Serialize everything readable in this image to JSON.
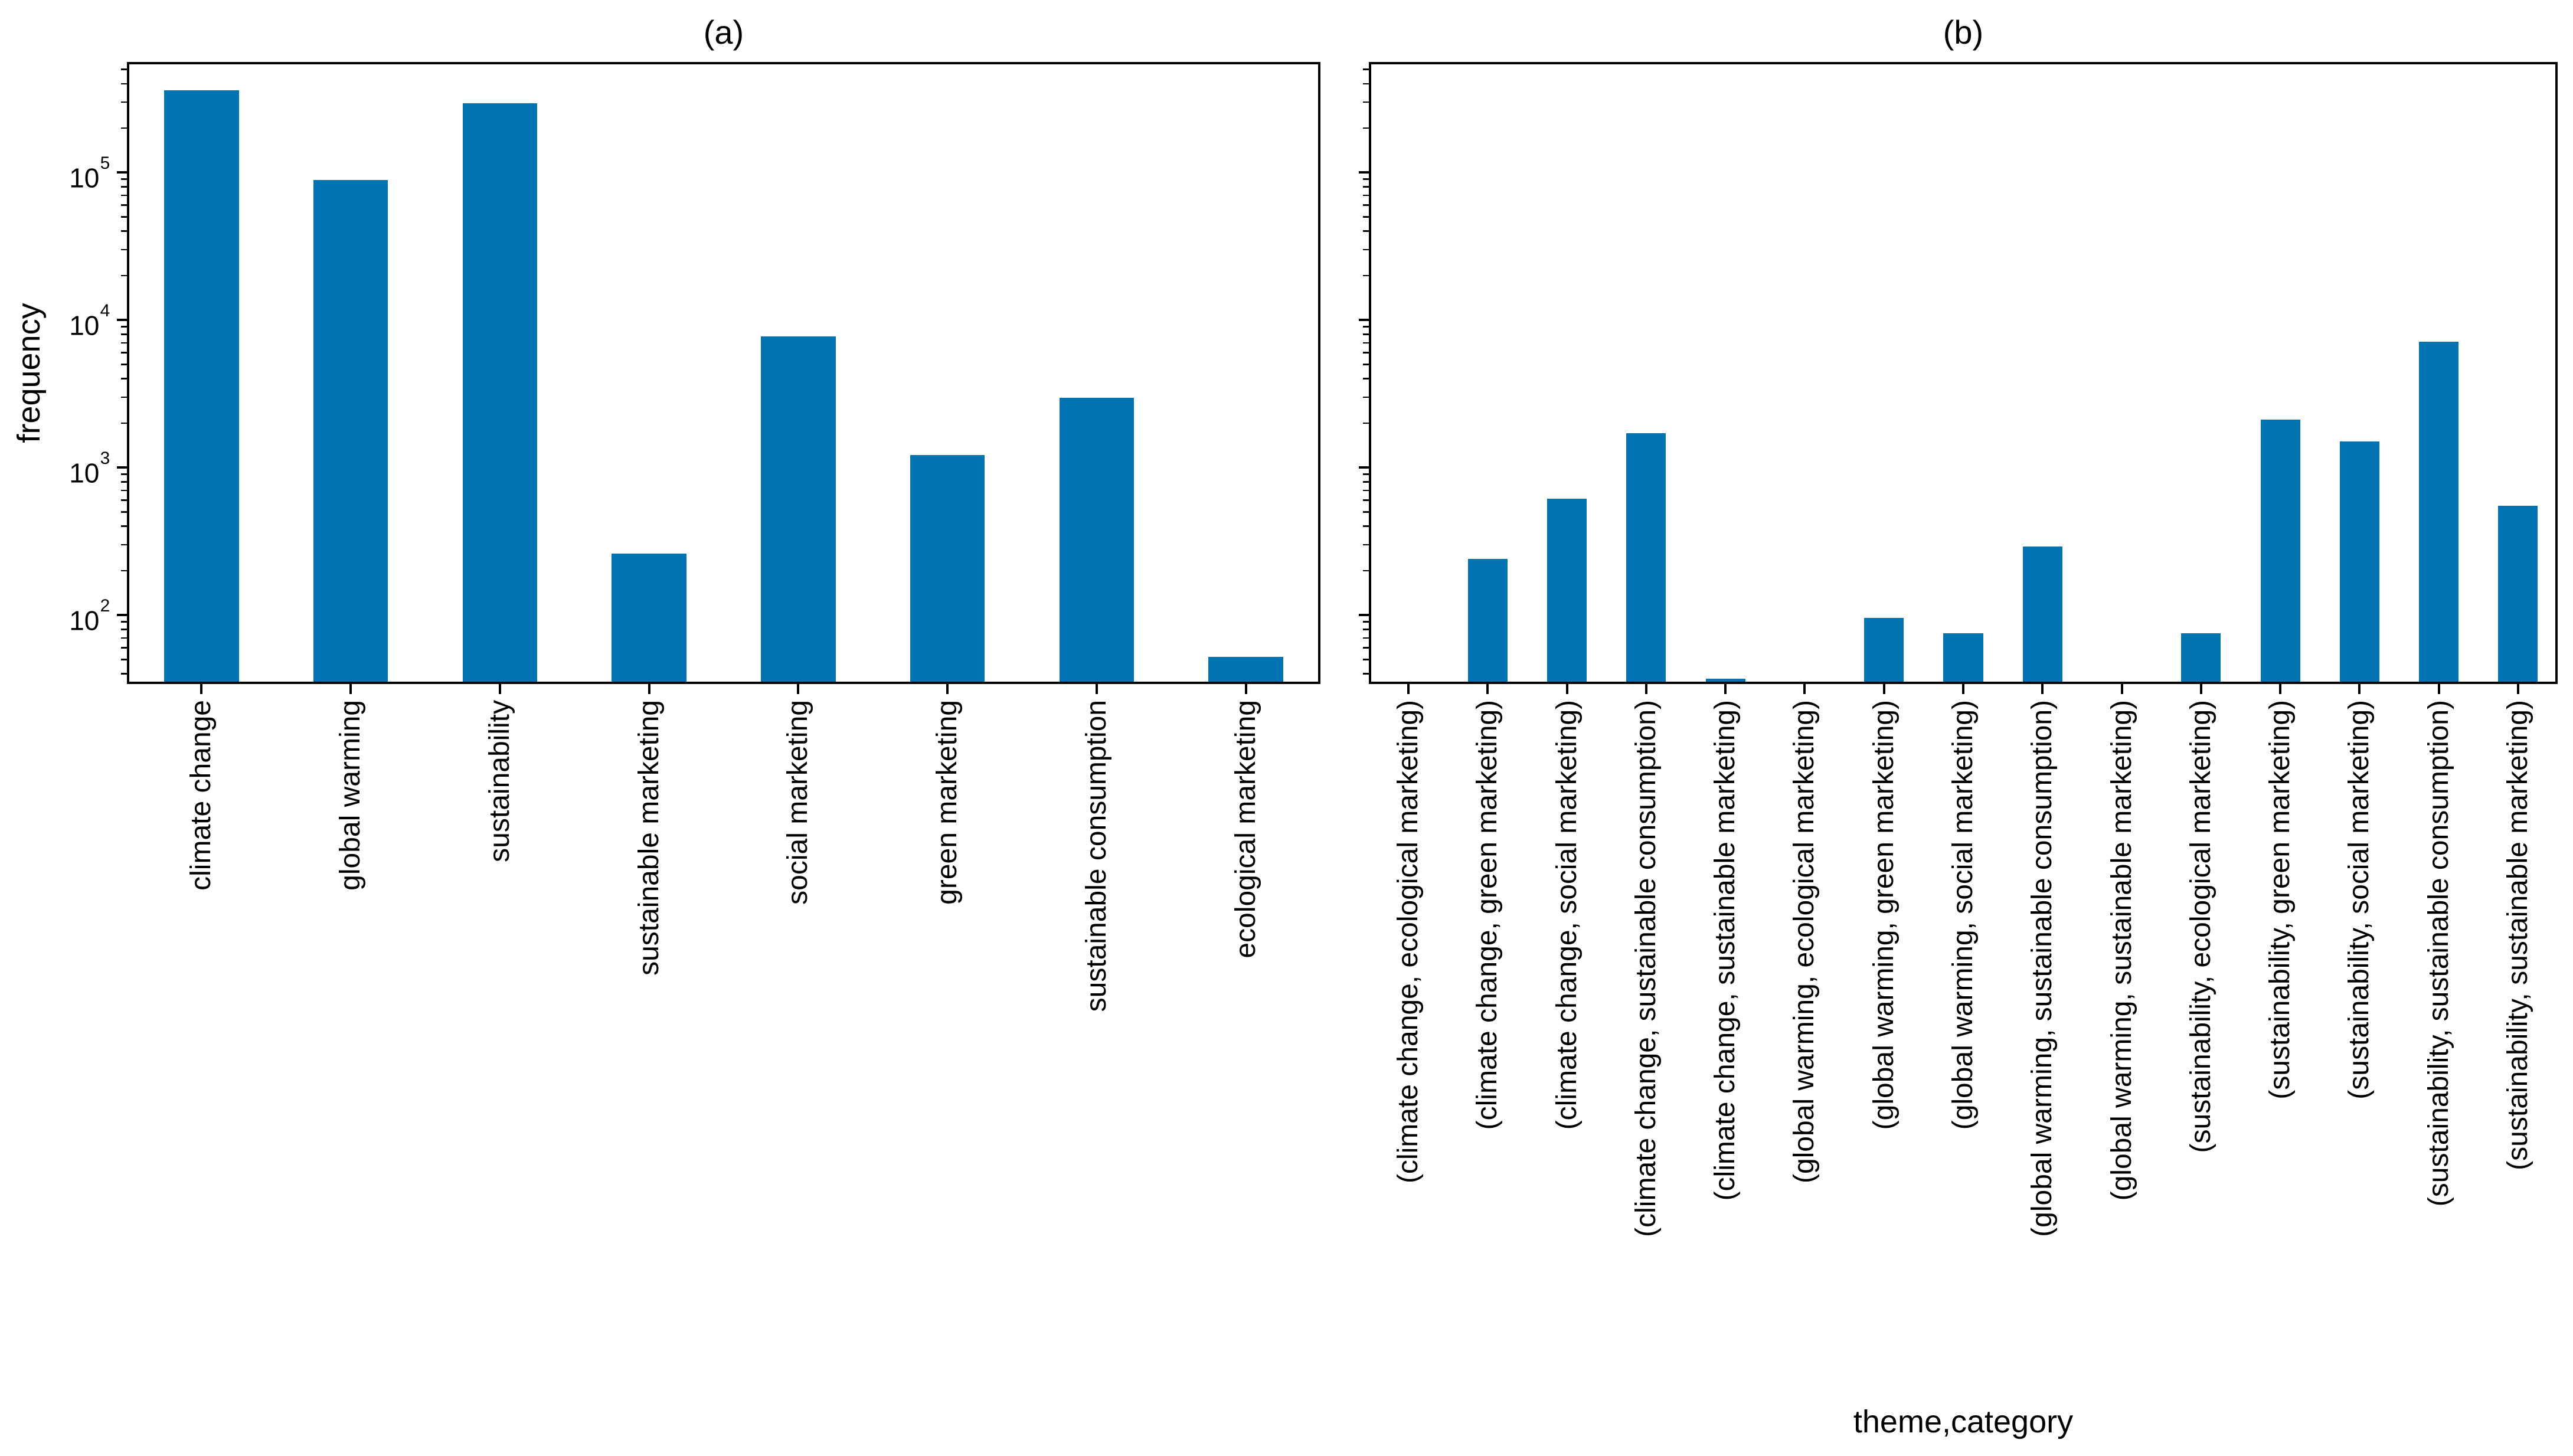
{
  "figure": {
    "background": "#ffffff",
    "bar_color": "#0173b2",
    "spine_color": "#000000",
    "ylabel": "frequency",
    "xlabel": "theme,category",
    "title_a": "(a)",
    "title_b": "(b)"
  },
  "chart_data": [
    {
      "type": "bar",
      "title": "(a)",
      "xlabel": "",
      "ylabel": "frequency",
      "yscale": "log",
      "ylim": [
        34,
        560000
      ],
      "grid": false,
      "legend": null,
      "y_tick_labels": [
        {
          "base": "10",
          "exp": "2",
          "value": 100
        },
        {
          "base": "10",
          "exp": "3",
          "value": 1000
        },
        {
          "base": "10",
          "exp": "4",
          "value": 10000
        },
        {
          "base": "10",
          "exp": "5",
          "value": 100000
        }
      ],
      "categories": [
        "climate change",
        "global warming",
        "sustainability",
        "sustainable marketing",
        "social marketing",
        "green marketing",
        "sustainable consumption",
        "ecological marketing"
      ],
      "values": [
        360000,
        89000,
        295000,
        260,
        7700,
        1210,
        2970,
        52
      ]
    },
    {
      "type": "bar",
      "title": "(b)",
      "xlabel": "theme,category",
      "ylabel": "",
      "yscale": "log",
      "ylim": [
        34,
        560000
      ],
      "grid": false,
      "legend": null,
      "y_tick_labels": [],
      "categories": [
        "(climate change, ecological marketing)",
        "(climate change, green marketing)",
        "(climate change, social marketing)",
        "(climate change, sustainable consumption)",
        "(climate change, sustainable marketing)",
        "(global warming, ecological marketing)",
        "(global warming, green marketing)",
        "(global warming, social marketing)",
        "(global warming, sustainable consumption)",
        "(global warming, sustainable marketing)",
        "(sustainability, ecological marketing)",
        "(sustainability, green marketing)",
        "(sustainability, social marketing)",
        "(sustainability, sustainable consumption)",
        "(sustainability, sustainable marketing)"
      ],
      "values": [
        0,
        240,
        615,
        1700,
        37,
        0,
        95,
        75,
        290,
        0,
        75,
        2100,
        1500,
        7100,
        550
      ]
    }
  ]
}
